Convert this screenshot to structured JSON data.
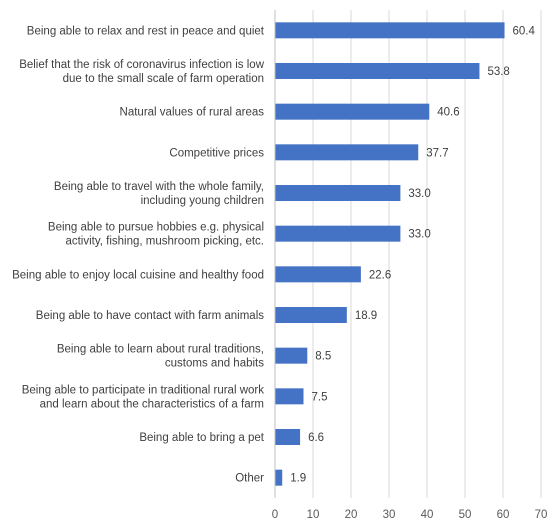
{
  "chart_data": {
    "type": "bar",
    "orientation": "horizontal",
    "categories": [
      "Being able to relax and rest in peace and quiet",
      "Belief that the risk of coronavirus infection is low\ndue to the small scale of farm operation",
      "Natural values of rural areas",
      "Competitive prices",
      "Being able to travel with the whole family,\nincluding young children",
      "Being able to pursue hobbies e.g. physical\nactivity, fishing, mushroom picking, etc.",
      "Being able to enjoy local cuisine and healthy food",
      "Being able to have contact with farm animals",
      "Being able to learn about rural traditions,\ncustoms and habits",
      "Being able to participate in traditional rural work\nand learn about the characteristics of a farm",
      "Being able to bring a pet",
      "Other"
    ],
    "values": [
      60.4,
      53.8,
      40.6,
      37.7,
      33.0,
      33.0,
      22.6,
      18.9,
      8.5,
      7.5,
      6.6,
      1.9
    ],
    "value_labels": [
      "60.4",
      "53.8",
      "40.6",
      "37.7",
      "33.0",
      "33.0",
      "22.6",
      "18.9",
      "8.5",
      "7.5",
      "6.6",
      "1.9"
    ],
    "xlim": [
      0,
      70
    ],
    "xticks": [
      0,
      10,
      20,
      30,
      40,
      50,
      60,
      70
    ],
    "grid": "vertical",
    "bar_color": "#4472c4",
    "grid_color": "#d9d9d9",
    "title": "",
    "xlabel": "",
    "ylabel": ""
  }
}
